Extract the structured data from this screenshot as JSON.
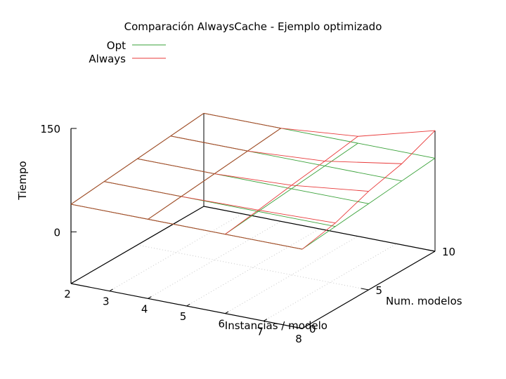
{
  "chart_data": {
    "type": "surface3d",
    "title": "Comparación AlwaysCache - Ejemplo optimizado",
    "xlabel": "Instancias / modelo",
    "ylabel": "Num. modelos",
    "zlabel": "Tiempo",
    "x_ticks": [
      2,
      3,
      4,
      5,
      6,
      7,
      8
    ],
    "y_ticks": [
      0,
      5,
      10
    ],
    "z_ticks": [
      0,
      150
    ],
    "xlim": [
      2,
      8
    ],
    "ylim": [
      0,
      10
    ],
    "zlim": [
      -75,
      150
    ],
    "grid": "base-plane dotted",
    "legend_position": "top-left",
    "x_grid": [
      2,
      4,
      6,
      8
    ],
    "y_grid": [
      0,
      2.5,
      5,
      7.5,
      10
    ],
    "series": [
      {
        "name": "Opt",
        "color": "#3aa23a",
        "z": [
          [
            40,
            45,
            50,
            55,
            60
          ],
          [
            40,
            45,
            50,
            55,
            60
          ],
          [
            40,
            45,
            50,
            55,
            60
          ],
          [
            40,
            45,
            50,
            55,
            60
          ]
        ]
      },
      {
        "name": "Always",
        "color": "#e83a3a",
        "z": [
          [
            40,
            45,
            50,
            55,
            60
          ],
          [
            40,
            45,
            50,
            55,
            60
          ],
          [
            40,
            47,
            55,
            62,
            70
          ],
          [
            40,
            50,
            68,
            80,
            100
          ]
        ]
      }
    ]
  }
}
